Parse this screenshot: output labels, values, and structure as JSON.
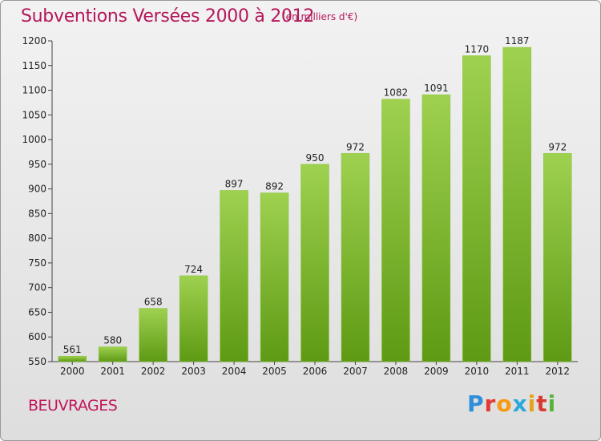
{
  "header": {
    "title": "Subventions Versées 2000 à 2012",
    "unit": "(en milliers d'€)"
  },
  "footer": {
    "place": "BEUVRAGES",
    "logo_letters": [
      "P",
      "r",
      "o",
      "x",
      "i",
      "t",
      "i"
    ],
    "logo_colors": [
      "#2f8fd8",
      "#e23a34",
      "#f59b13",
      "#2aa9dd",
      "#e5a21a",
      "#d9392f",
      "#59b33a"
    ]
  },
  "colors": {
    "bar_top": "#9ed14f",
    "bar_bottom": "#5e9a14",
    "axis": "#444444"
  },
  "chart_data": {
    "type": "bar",
    "title": "Subventions Versées 2000 à 2012",
    "xlabel": "",
    "ylabel": "",
    "categories": [
      "2000",
      "2001",
      "2002",
      "2003",
      "2004",
      "2005",
      "2006",
      "2007",
      "2008",
      "2009",
      "2010",
      "2011",
      "2012"
    ],
    "values": [
      561,
      580,
      658,
      724,
      897,
      892,
      950,
      972,
      1082,
      1091,
      1170,
      1187,
      972
    ],
    "ylim": [
      550,
      1200
    ],
    "yticks": [
      550,
      600,
      650,
      700,
      750,
      800,
      850,
      900,
      950,
      1000,
      1050,
      1100,
      1150,
      1200
    ]
  }
}
